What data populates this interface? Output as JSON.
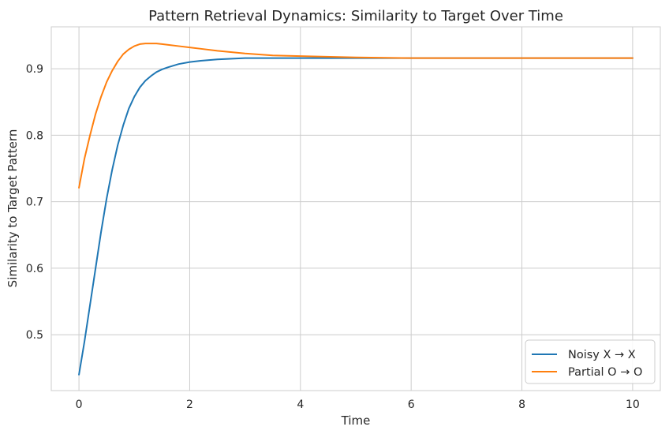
{
  "chart_data": {
    "type": "line",
    "title": "Pattern Retrieval Dynamics: Similarity to Target Over Time",
    "xlabel": "Time",
    "ylabel": "Similarity to Target Pattern",
    "xlim": [
      -0.5,
      10.5
    ],
    "ylim": [
      0.416,
      0.963
    ],
    "xticks": [
      0,
      2,
      4,
      6,
      8,
      10
    ],
    "yticks": [
      0.5,
      0.6,
      0.7,
      0.8,
      0.9
    ],
    "xtick_labels": [
      "0",
      "2",
      "4",
      "6",
      "8",
      "10"
    ],
    "ytick_labels": [
      "0.5",
      "0.6",
      "0.7",
      "0.8",
      "0.9"
    ],
    "grid": true,
    "legend_position": "bottom-right",
    "series": [
      {
        "name": "Noisy X → X",
        "color": "#1f77b4",
        "x": [
          0,
          0.1,
          0.2,
          0.3,
          0.4,
          0.5,
          0.6,
          0.7,
          0.8,
          0.9,
          1.0,
          1.1,
          1.2,
          1.3,
          1.4,
          1.5,
          1.6,
          1.8,
          2.0,
          2.2,
          2.5,
          3.0,
          3.5,
          4.0,
          5.0,
          6.0,
          7.0,
          8.0,
          9.0,
          10.0
        ],
        "y": [
          0.44,
          0.49,
          0.545,
          0.6,
          0.655,
          0.705,
          0.748,
          0.785,
          0.815,
          0.84,
          0.858,
          0.872,
          0.882,
          0.889,
          0.895,
          0.899,
          0.902,
          0.907,
          0.91,
          0.912,
          0.914,
          0.916,
          0.916,
          0.916,
          0.916,
          0.916,
          0.916,
          0.916,
          0.916,
          0.916
        ]
      },
      {
        "name": "Partial O → O",
        "color": "#ff7f0e",
        "x": [
          0,
          0.1,
          0.2,
          0.3,
          0.4,
          0.5,
          0.6,
          0.7,
          0.8,
          0.9,
          1.0,
          1.1,
          1.2,
          1.3,
          1.4,
          1.5,
          1.6,
          1.8,
          2.0,
          2.2,
          2.5,
          3.0,
          3.5,
          4.0,
          5.0,
          6.0,
          7.0,
          8.0,
          9.0,
          10.0
        ],
        "y": [
          0.721,
          0.765,
          0.8,
          0.832,
          0.858,
          0.88,
          0.897,
          0.911,
          0.922,
          0.929,
          0.934,
          0.937,
          0.938,
          0.938,
          0.938,
          0.937,
          0.936,
          0.934,
          0.932,
          0.93,
          0.927,
          0.923,
          0.92,
          0.919,
          0.917,
          0.916,
          0.916,
          0.916,
          0.916,
          0.916
        ]
      }
    ]
  }
}
